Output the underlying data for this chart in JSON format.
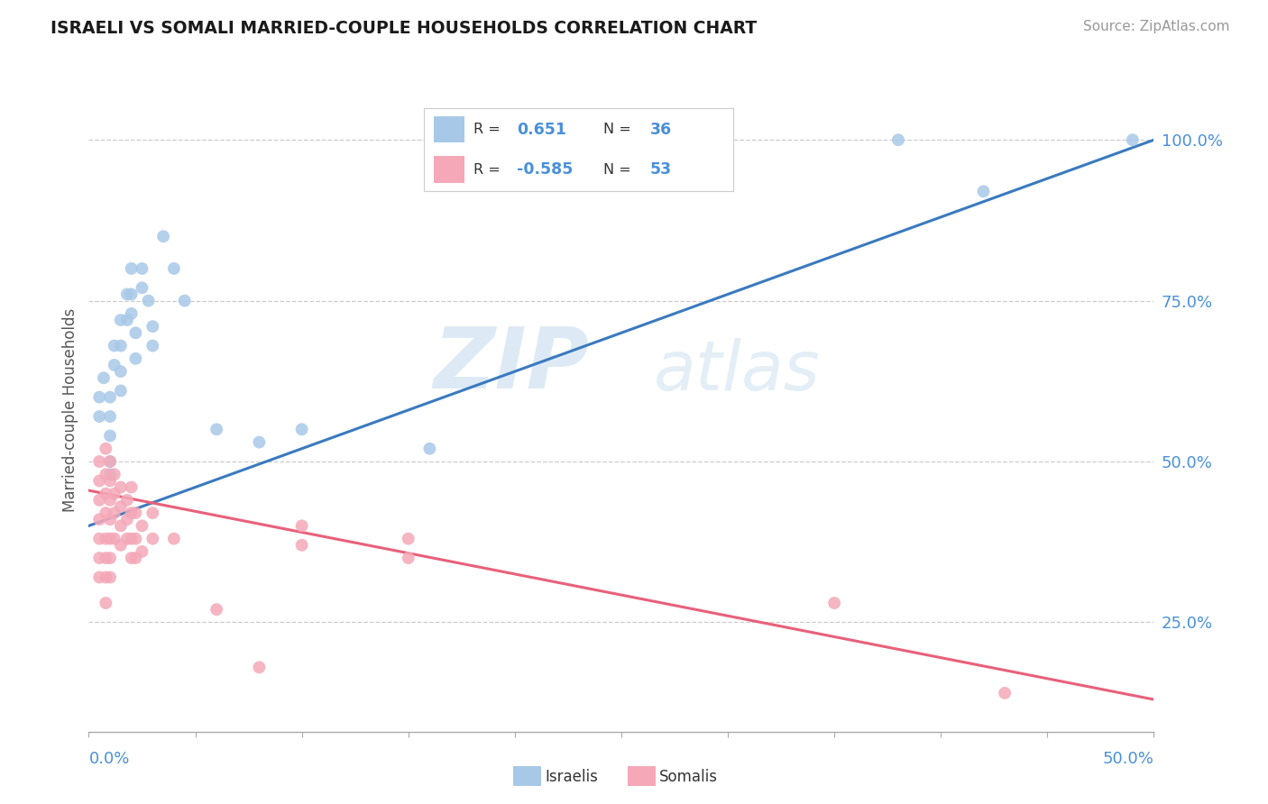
{
  "title": "ISRAELI VS SOMALI MARRIED-COUPLE HOUSEHOLDS CORRELATION CHART",
  "source": "Source: ZipAtlas.com",
  "ylabel": "Married-couple Households",
  "y_ticks": [
    0.25,
    0.5,
    0.75,
    1.0
  ],
  "y_tick_labels": [
    "25.0%",
    "50.0%",
    "75.0%",
    "100.0%"
  ],
  "x_range": [
    0.0,
    0.5
  ],
  "y_range": [
    0.08,
    1.08
  ],
  "israeli_color": "#a8c8e8",
  "somali_color": "#f4a8b8",
  "israeli_line_color": "#3a7abf",
  "somali_line_color": "#e8607a",
  "legend_text_color": "#4a90d9",
  "watermark_zip": "ZIP",
  "watermark_atlas": "atlas",
  "israeli_R": "0.651",
  "israeli_N": "36",
  "somali_R": "-0.585",
  "somali_N": "53",
  "israeli_points": [
    [
      0.005,
      0.6
    ],
    [
      0.005,
      0.57
    ],
    [
      0.007,
      0.63
    ],
    [
      0.01,
      0.6
    ],
    [
      0.01,
      0.57
    ],
    [
      0.01,
      0.54
    ],
    [
      0.01,
      0.5
    ],
    [
      0.01,
      0.48
    ],
    [
      0.012,
      0.68
    ],
    [
      0.012,
      0.65
    ],
    [
      0.015,
      0.72
    ],
    [
      0.015,
      0.68
    ],
    [
      0.015,
      0.64
    ],
    [
      0.015,
      0.61
    ],
    [
      0.018,
      0.76
    ],
    [
      0.018,
      0.72
    ],
    [
      0.02,
      0.8
    ],
    [
      0.02,
      0.76
    ],
    [
      0.02,
      0.73
    ],
    [
      0.022,
      0.7
    ],
    [
      0.022,
      0.66
    ],
    [
      0.025,
      0.8
    ],
    [
      0.025,
      0.77
    ],
    [
      0.028,
      0.75
    ],
    [
      0.03,
      0.71
    ],
    [
      0.03,
      0.68
    ],
    [
      0.035,
      0.85
    ],
    [
      0.04,
      0.8
    ],
    [
      0.045,
      0.75
    ],
    [
      0.06,
      0.55
    ],
    [
      0.08,
      0.53
    ],
    [
      0.1,
      0.55
    ],
    [
      0.16,
      0.52
    ],
    [
      0.38,
      1.0
    ],
    [
      0.42,
      0.92
    ],
    [
      0.49,
      1.0
    ]
  ],
  "somali_points": [
    [
      0.005,
      0.5
    ],
    [
      0.005,
      0.47
    ],
    [
      0.005,
      0.44
    ],
    [
      0.005,
      0.41
    ],
    [
      0.005,
      0.38
    ],
    [
      0.005,
      0.35
    ],
    [
      0.005,
      0.32
    ],
    [
      0.008,
      0.52
    ],
    [
      0.008,
      0.48
    ],
    [
      0.008,
      0.45
    ],
    [
      0.008,
      0.42
    ],
    [
      0.008,
      0.38
    ],
    [
      0.008,
      0.35
    ],
    [
      0.008,
      0.32
    ],
    [
      0.008,
      0.28
    ],
    [
      0.01,
      0.5
    ],
    [
      0.01,
      0.47
    ],
    [
      0.01,
      0.44
    ],
    [
      0.01,
      0.41
    ],
    [
      0.01,
      0.38
    ],
    [
      0.01,
      0.35
    ],
    [
      0.01,
      0.32
    ],
    [
      0.012,
      0.48
    ],
    [
      0.012,
      0.45
    ],
    [
      0.012,
      0.42
    ],
    [
      0.012,
      0.38
    ],
    [
      0.015,
      0.46
    ],
    [
      0.015,
      0.43
    ],
    [
      0.015,
      0.4
    ],
    [
      0.015,
      0.37
    ],
    [
      0.018,
      0.44
    ],
    [
      0.018,
      0.41
    ],
    [
      0.018,
      0.38
    ],
    [
      0.02,
      0.46
    ],
    [
      0.02,
      0.42
    ],
    [
      0.02,
      0.38
    ],
    [
      0.02,
      0.35
    ],
    [
      0.022,
      0.42
    ],
    [
      0.022,
      0.38
    ],
    [
      0.022,
      0.35
    ],
    [
      0.025,
      0.4
    ],
    [
      0.025,
      0.36
    ],
    [
      0.03,
      0.42
    ],
    [
      0.03,
      0.38
    ],
    [
      0.04,
      0.38
    ],
    [
      0.06,
      0.27
    ],
    [
      0.08,
      0.18
    ],
    [
      0.1,
      0.4
    ],
    [
      0.1,
      0.37
    ],
    [
      0.15,
      0.38
    ],
    [
      0.15,
      0.35
    ],
    [
      0.35,
      0.28
    ],
    [
      0.43,
      0.14
    ]
  ]
}
